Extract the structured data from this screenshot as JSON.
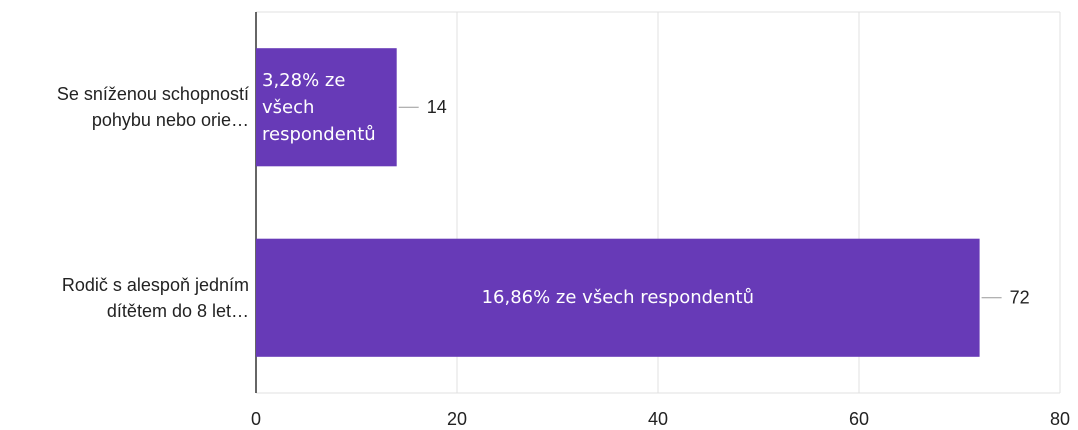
{
  "chart_data": {
    "type": "bar",
    "orientation": "horizontal",
    "categories": [
      "Se sníženou schopností\npohybu nebo orie…",
      "Rodič s alespoň jedním\ndítětem do 8 let…"
    ],
    "values": [
      14,
      72
    ],
    "value_labels": [
      "14",
      "72"
    ],
    "annotations": [
      "3,28% ze všech respondentů",
      "16,86% ze všech respondentů"
    ],
    "color": "#673ab7",
    "xlim": [
      0,
      80
    ],
    "xticks": [
      0,
      20,
      40,
      60,
      80
    ],
    "grid": true
  }
}
